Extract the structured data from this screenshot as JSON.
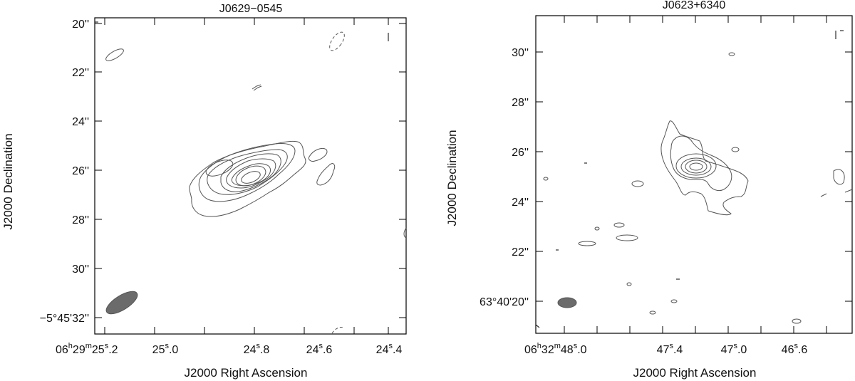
{
  "chart_data": [
    {
      "type": "contour",
      "title": "J0629−0545",
      "xlabel": "J2000 Right Ascension",
      "ylabel": "J2000 Declination",
      "xlim_arcsec_offset": [
        1.35,
        -1.3
      ],
      "ylim_arcsec": [
        32.6,
        19.85
      ],
      "x_ticks": [
        {
          "offset": 1.0,
          "label_main": "06",
          "label_parts": [
            [
              "h",
              ""
            ],
            [
              "29",
              ""
            ],
            [
              "m",
              ""
            ],
            [
              "25",
              ""
            ],
            [
              "s",
              ""
            ],
            [
              ".2",
              ""
            ]
          ]
        },
        {
          "offset": 0.0,
          "label_main": "25",
          "label_parts": [
            [
              "s",
              ""
            ],
            [
              ".0",
              ""
            ]
          ]
        },
        {
          "offset": -1.0,
          "label_main": "24",
          "label_parts": [
            [
              "s",
              ""
            ],
            [
              ".8",
              ""
            ]
          ]
        },
        {
          "offset": -2.0,
          "label_main": "24",
          "label_parts": [
            [
              "s",
              ""
            ],
            [
              ".6",
              ""
            ]
          ]
        },
        {
          "offset": -3.0,
          "label_main": "24",
          "label_parts": [
            [
              "s",
              ""
            ],
            [
              ".4",
              ""
            ]
          ]
        }
      ],
      "x_tick_text": [
        "06h29m25s.2",
        "25s.0",
        "24s.8",
        "24s.6",
        "24s.4"
      ],
      "y_tick_text": [
        "20''",
        "22''",
        "24''",
        "26''",
        "28''",
        "30''",
        "−5°45'32''"
      ],
      "peak": {
        "x": "24s.78",
        "y": "26.4''"
      },
      "contour_levels": 9,
      "beam": {
        "major": "large",
        "pa": "elongated NE-SW"
      }
    },
    {
      "type": "contour",
      "title": "J0623+6340",
      "xlabel": "J2000 Right Ascension",
      "ylabel": "J2000 Declination",
      "x_tick_text": [
        "06h32m48s.0",
        "47s.4",
        "47s.0",
        "46s.6"
      ],
      "y_tick_text": [
        "30''",
        "28''",
        "26''",
        "24''",
        "22''",
        "63°40'20''"
      ],
      "peak": {
        "x": "47s.2",
        "y": "25.3''"
      },
      "contour_levels": 6,
      "beam": {
        "major": "small",
        "pa": "round"
      }
    }
  ],
  "labels": {
    "left": {
      "title": "J0629−0545",
      "xlabel": "J2000 Right Ascension",
      "ylabel": "J2000 Declination",
      "yticks": [
        "20''",
        "22''",
        "24''",
        "26''",
        "28''",
        "30''",
        "−5°45'32''"
      ],
      "xticks": [
        {
          "big": "06",
          "sup1": "h",
          "mid1": "29",
          "sup2": "m",
          "mid2": "25",
          "sup3": "s",
          "end": ".2"
        },
        {
          "big": "25",
          "sup3": "s",
          "end": ".0"
        },
        {
          "big": "24",
          "sup3": "s",
          "end": ".8"
        },
        {
          "big": "24",
          "sup3": "s",
          "end": ".6"
        },
        {
          "big": "24",
          "sup3": "s",
          "end": ".4"
        }
      ]
    },
    "right": {
      "title": "J0623+6340",
      "xlabel": "J2000 Right Ascension",
      "ylabel": "J2000 Declination",
      "yticks": [
        "30''",
        "28''",
        "26''",
        "24''",
        "22''",
        "63°40'20''"
      ],
      "xticks": [
        {
          "big": "06",
          "sup1": "h",
          "mid1": "32",
          "sup2": "m",
          "mid2": "48",
          "sup3": "s",
          "end": ".0"
        },
        {
          "big": "47",
          "sup3": "s",
          "end": ".4"
        },
        {
          "big": "47",
          "sup3": "s",
          "end": ".0"
        },
        {
          "big": "46",
          "sup3": "s",
          "end": ".6"
        }
      ]
    }
  },
  "colors": {
    "contour": "#555555",
    "beam": "#6b6b6b",
    "frame": "#000000"
  }
}
